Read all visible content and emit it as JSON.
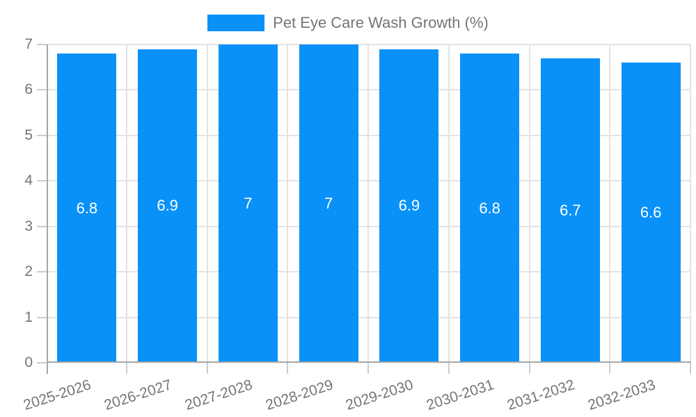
{
  "legend": {
    "label": "Pet Eye Care Wash Growth (%)"
  },
  "chart_data": {
    "type": "bar",
    "title": "Pet Eye Care Wash Growth (%)",
    "categories": [
      "2025-2026",
      "2026-2027",
      "2027-2028",
      "2028-2029",
      "2029-2030",
      "2030-2031",
      "2031-2032",
      "2032-2033"
    ],
    "series": [
      {
        "name": "Pet Eye Care Wash Growth (%)",
        "values": [
          6.8,
          6.9,
          7,
          7,
          6.9,
          6.8,
          6.7,
          6.6
        ]
      }
    ],
    "value_labels": [
      "6.8",
      "6.9",
      "7",
      "7",
      "6.9",
      "6.8",
      "6.7",
      "6.6"
    ],
    "xlabel": "",
    "ylabel": "",
    "ylim": [
      0,
      7
    ],
    "yticks": [
      0,
      1,
      2,
      3,
      4,
      5,
      6,
      7
    ],
    "grid": true,
    "legend_position": "top-center",
    "x_label_rotation_deg": -18,
    "colors": {
      "bar": "#0991F8",
      "axis_text": "#757575",
      "grid": "#e3e3e3",
      "axis_line": "#a6a6a6",
      "tick": "#cccccc",
      "value_label": "#ffffff"
    }
  }
}
